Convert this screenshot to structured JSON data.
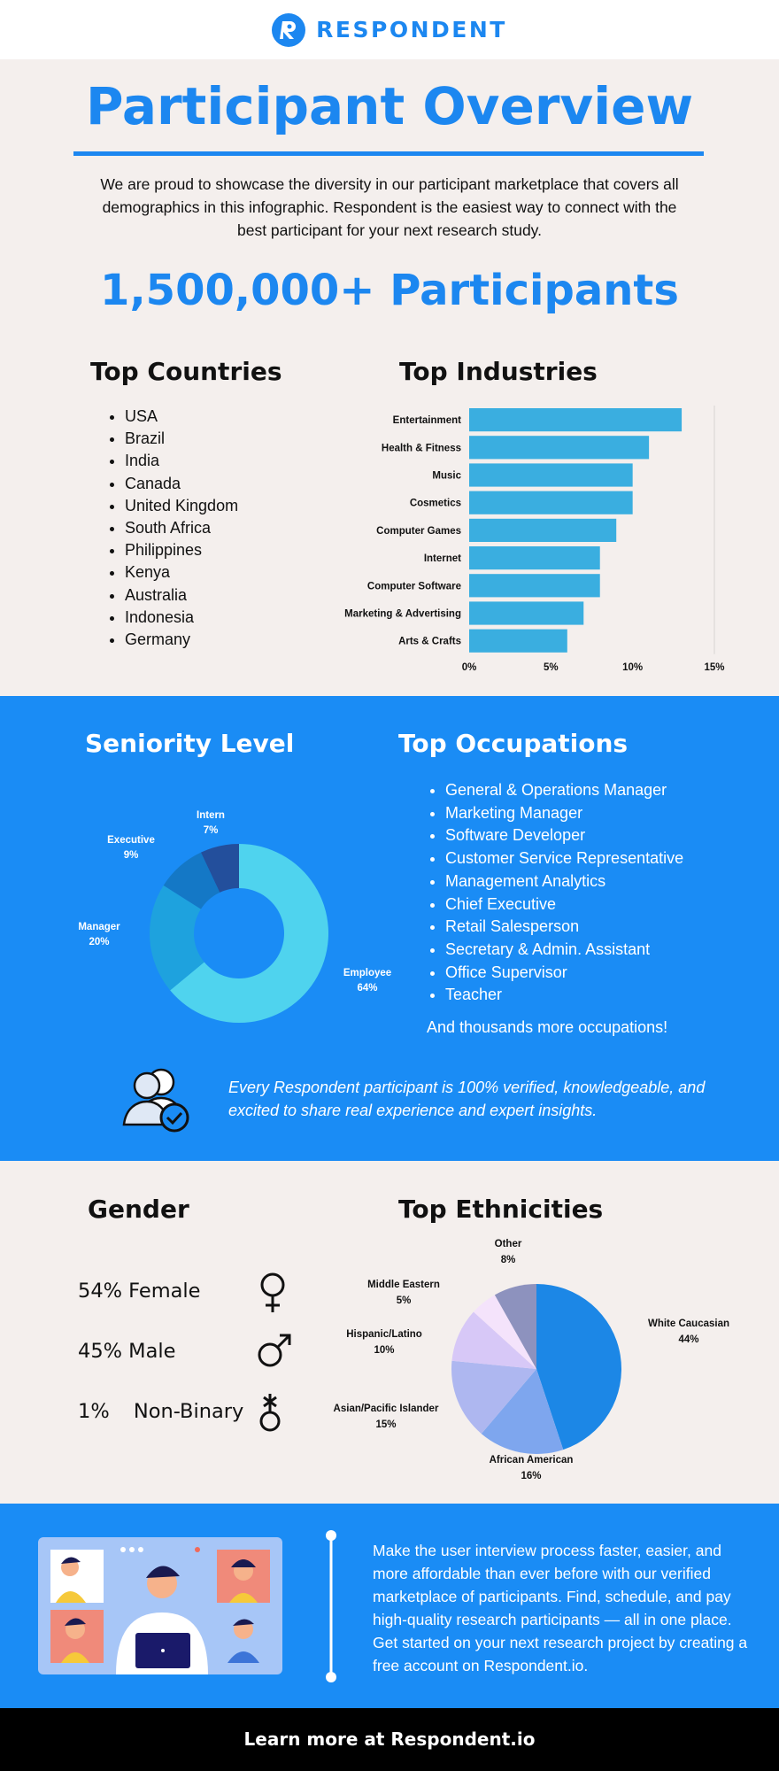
{
  "brand": {
    "name": "RESPONDENT"
  },
  "title": "Participant Overview",
  "intro": "We are proud to showcase the diversity in our participant marketplace that covers all demographics in this infographic. Respondent is the easiest way to connect with the best participant for your next research study.",
  "headline": "1,500,000+ Participants",
  "countries": {
    "title": "Top Countries",
    "items": [
      "USA",
      "Brazil",
      "India",
      "Canada",
      "United Kingdom",
      "South Africa",
      "Philippines",
      "Kenya",
      "Australia",
      "Indonesia",
      "Germany"
    ]
  },
  "occupations": {
    "title": "Top Occupations",
    "items": [
      "General & Operations Manager",
      "Marketing Manager",
      "Software Developer",
      "Customer Service Representative",
      "Management Analytics",
      "Chief Executive",
      "Retail Salesperson",
      "Secretary & Admin. Assistant",
      "Office Supervisor",
      "Teacher"
    ],
    "more": "And thousands more occupations!"
  },
  "verify_text": "Every Respondent participant is 100% verified, knowledgeable, and excited to share real experience and expert insights.",
  "gender": {
    "title": "Gender",
    "rows": [
      {
        "pct": "54%",
        "label": "Female"
      },
      {
        "pct": "45%",
        "label": "Male"
      },
      {
        "pct": "1%",
        "label": "Non-Binary"
      }
    ]
  },
  "cta_text": "Make the user interview process faster, easier, and more affordable than ever before with our verified marketplace of participants. Find, schedule, and pay high-quality research participants — all in one place. Get started on your next research project by creating a free account on Respondent.io.",
  "footer": "Learn more at Respondent.io",
  "colors": {
    "accent": "#1c87f0",
    "bar": "#3aaee0"
  },
  "chart_data": [
    {
      "type": "bar",
      "orientation": "horizontal",
      "title": "Top Industries",
      "categories": [
        "Entertainment",
        "Health & Fitness",
        "Music",
        "Cosmetics",
        "Computer Games",
        "Internet",
        "Computer Software",
        "Marketing & Advertising",
        "Arts & Crafts"
      ],
      "values": [
        13,
        11,
        10,
        10,
        9,
        8,
        8,
        7,
        6
      ],
      "xlim": [
        0,
        15
      ],
      "xticks": [
        0,
        5,
        10,
        15
      ],
      "tick_labels": [
        "0%",
        "5%",
        "10%",
        "15%"
      ]
    },
    {
      "type": "pie",
      "variant": "donut",
      "title": "Seniority Level",
      "slices": [
        {
          "label": "Employee",
          "value": 64,
          "display": "64%",
          "color": "#4fd3ee"
        },
        {
          "label": "Manager",
          "value": 20,
          "display": "20%",
          "color": "#1ea2de"
        },
        {
          "label": "Executive",
          "value": 9,
          "display": "9%",
          "color": "#1478c6"
        },
        {
          "label": "Intern",
          "value": 7,
          "display": "7%",
          "color": "#234f9c"
        }
      ]
    },
    {
      "type": "pie",
      "title": "Top Ethnicities",
      "slices": [
        {
          "label": "White Caucasian",
          "value": 44,
          "display": "44%",
          "color": "#1c87e6"
        },
        {
          "label": "African American",
          "value": 16,
          "display": "16%",
          "color": "#7ea6ee"
        },
        {
          "label": "Asian/Pacific Islander",
          "value": 15,
          "display": "15%",
          "color": "#aeb7f0"
        },
        {
          "label": "Hispanic/Latino",
          "value": 10,
          "display": "10%",
          "color": "#d7c8f7"
        },
        {
          "label": "Middle Eastern",
          "value": 5,
          "display": "5%",
          "color": "#f4e3fb"
        },
        {
          "label": "Other",
          "value": 8,
          "display": "8%",
          "color": "#8d92be"
        }
      ]
    }
  ]
}
